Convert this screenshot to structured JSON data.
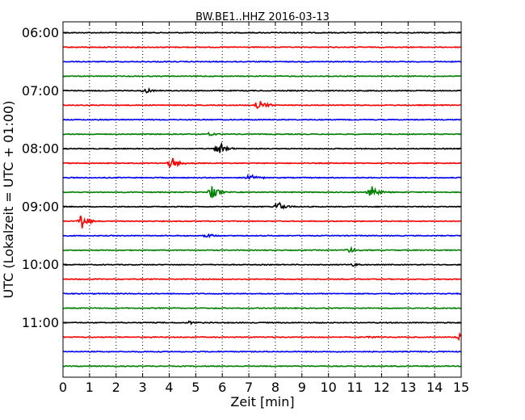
{
  "chart_data": {
    "type": "line",
    "title": "BW.BE1..HHZ 2016-03-13",
    "xlabel": "Zeit  [min]",
    "ylabel": "UTC (Lokalzeit = UTC + 01:00)",
    "xlim": [
      0,
      15
    ],
    "x_ticks": [
      "0",
      "1",
      "2",
      "3",
      "4",
      "5",
      "6",
      "7",
      "8",
      "9",
      "10",
      "11",
      "12",
      "13",
      "14",
      "15"
    ],
    "y_ticks": [
      "06:00",
      "07:00",
      "08:00",
      "09:00",
      "10:00",
      "11:00"
    ],
    "grid": true,
    "grid_axis": "x",
    "trace_interval_min": 15,
    "series_colors": [
      "#000000",
      "#ff0000",
      "#0000ff",
      "#008000"
    ],
    "traces": [
      {
        "start": "06:00",
        "events": []
      },
      {
        "start": "06:15",
        "events": []
      },
      {
        "start": "06:30",
        "events": []
      },
      {
        "start": "06:45",
        "events": []
      },
      {
        "start": "07:00",
        "events": [
          {
            "t": 3.1,
            "amp": 0.35
          }
        ]
      },
      {
        "start": "07:15",
        "events": [
          {
            "t": 7.35,
            "amp": 1.1
          }
        ]
      },
      {
        "start": "07:30",
        "events": []
      },
      {
        "start": "07:45",
        "events": [
          {
            "t": 5.55,
            "amp": 0.3
          }
        ]
      },
      {
        "start": "08:00",
        "events": [
          {
            "t": 5.85,
            "amp": 1.0
          }
        ]
      },
      {
        "start": "08:15",
        "events": [
          {
            "t": 4.1,
            "amp": 0.9
          }
        ]
      },
      {
        "start": "08:30",
        "events": [
          {
            "t": 7.05,
            "amp": 0.55
          }
        ]
      },
      {
        "start": "08:45",
        "events": [
          {
            "t": 5.6,
            "amp": 0.9
          },
          {
            "t": 11.6,
            "amp": 1.1
          }
        ]
      },
      {
        "start": "09:00",
        "events": [
          {
            "t": 8.1,
            "amp": 0.75
          }
        ]
      },
      {
        "start": "09:15",
        "events": [
          {
            "t": 0.7,
            "amp": 1.1
          }
        ]
      },
      {
        "start": "09:30",
        "events": [
          {
            "t": 5.4,
            "amp": 0.3
          }
        ]
      },
      {
        "start": "09:45",
        "events": [
          {
            "t": 10.75,
            "amp": 0.45
          }
        ]
      },
      {
        "start": "10:00",
        "events": [
          {
            "t": 10.95,
            "amp": 0.25
          }
        ]
      },
      {
        "start": "10:15",
        "events": []
      },
      {
        "start": "10:30",
        "events": []
      },
      {
        "start": "10:45",
        "events": []
      },
      {
        "start": "11:00",
        "events": [
          {
            "t": 4.8,
            "amp": 0.2
          }
        ]
      },
      {
        "start": "11:15",
        "events": [
          {
            "t": 11.5,
            "amp": 0.2
          },
          {
            "t": 14.95,
            "amp": 0.5
          }
        ]
      },
      {
        "start": "11:30",
        "events": []
      },
      {
        "start": "11:45",
        "events": []
      }
    ]
  }
}
